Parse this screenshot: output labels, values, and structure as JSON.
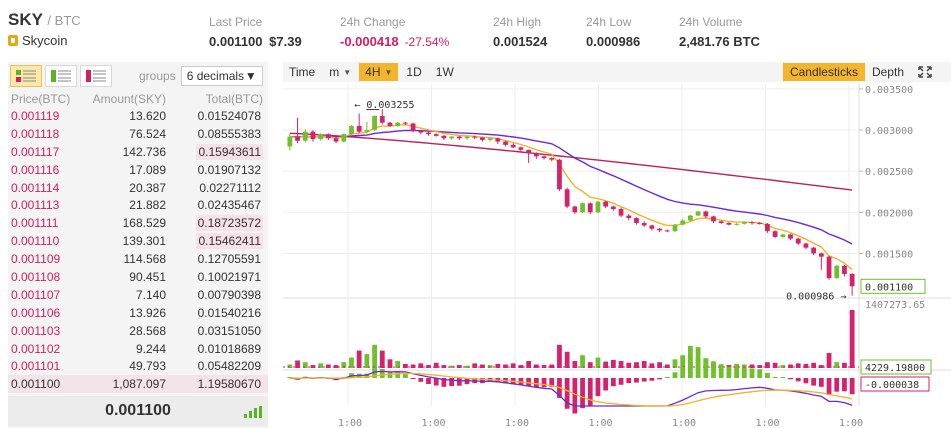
{
  "header": {
    "symbol": "SKY",
    "quote": "/ BTC",
    "name": "Skycoin",
    "last_price_label": "Last Price",
    "last_price": "0.001100",
    "last_price_usd": "$7.39",
    "change_label": "24h Change",
    "change": "-0.000418",
    "change_pct": "-27.54%",
    "high_label": "24h High",
    "high": "0.001524",
    "low_label": "24h Low",
    "low": "0.000986",
    "volume_label": "24h Volume",
    "volume": "2,481.76 BTC"
  },
  "orderbook": {
    "groups_label": "groups",
    "groups_value": "6 decimals",
    "columns": [
      "Price(BTC)",
      "Amount(SKY)",
      "Total(BTC)"
    ],
    "rows": [
      {
        "price": "0.001119",
        "amount": "13.620",
        "total": "0.01524078",
        "hl": false
      },
      {
        "price": "0.001118",
        "amount": "76.524",
        "total": "0.08555383",
        "hl": false
      },
      {
        "price": "0.001117",
        "amount": "142.736",
        "total": "0.15943611",
        "hl": true
      },
      {
        "price": "0.001116",
        "amount": "17.089",
        "total": "0.01907132",
        "hl": false
      },
      {
        "price": "0.001114",
        "amount": "20.387",
        "total": "0.02271112",
        "hl": false
      },
      {
        "price": "0.001113",
        "amount": "21.882",
        "total": "0.02435467",
        "hl": false
      },
      {
        "price": "0.001111",
        "amount": "168.529",
        "total": "0.18723572",
        "hl": true
      },
      {
        "price": "0.001110",
        "amount": "139.301",
        "total": "0.15462411",
        "hl": true
      },
      {
        "price": "0.001109",
        "amount": "114.568",
        "total": "0.12705591",
        "hl": false
      },
      {
        "price": "0.001108",
        "amount": "90.451",
        "total": "0.10021971",
        "hl": false
      },
      {
        "price": "0.001107",
        "amount": "7.140",
        "total": "0.00790398",
        "hl": false
      },
      {
        "price": "0.001106",
        "amount": "13.926",
        "total": "0.01540216",
        "hl": false
      },
      {
        "price": "0.001103",
        "amount": "28.568",
        "total": "0.03151050",
        "hl": false
      },
      {
        "price": "0.001102",
        "amount": "9.244",
        "total": "0.01018689",
        "hl": false
      },
      {
        "price": "0.001101",
        "amount": "49.793",
        "total": "0.05482209",
        "hl": false
      },
      {
        "price": "0.001100",
        "amount": "1,087.097",
        "total": "1.19580670",
        "hl": false,
        "last": true
      }
    ],
    "last_price": "0.001100"
  },
  "toolbar": {
    "time": "Time",
    "minute": "m",
    "h4": "4H",
    "d1": "1D",
    "w1": "1W",
    "candles": "Candlesticks",
    "depth": "Depth"
  },
  "chart_data": {
    "type": "candlestick",
    "price_axis": [
      "0.003500",
      "0.003000",
      "0.002500",
      "0.002000",
      "0.001500",
      "0.001100"
    ],
    "price_range": [
      0.00097,
      0.00356
    ],
    "annotations": {
      "high": "0.003255",
      "low": "0.000986"
    },
    "volume_axis": [
      "1407273.65",
      "4229.19800"
    ],
    "macd_axis": [
      "-0.000038"
    ],
    "time_labels": [
      "1:00",
      "1:00",
      "1:00",
      "1:00",
      "1:00",
      "1:00",
      "1:00"
    ],
    "candles": [
      [
        0.0028,
        0.00292,
        0.00275,
        0.00296
      ],
      [
        0.00292,
        0.00287,
        0.00284,
        0.00315
      ],
      [
        0.00287,
        0.00298,
        0.00285,
        0.00301
      ],
      [
        0.00298,
        0.00289,
        0.00286,
        0.003
      ],
      [
        0.00289,
        0.00295,
        0.00287,
        0.00296
      ],
      [
        0.00295,
        0.0029,
        0.00288,
        0.00296
      ],
      [
        0.0029,
        0.00286,
        0.00284,
        0.00291
      ],
      [
        0.00286,
        0.00295,
        0.00285,
        0.00296
      ],
      [
        0.00295,
        0.00305,
        0.00293,
        0.00306
      ],
      [
        0.00305,
        0.00298,
        0.00296,
        0.0032
      ],
      [
        0.00298,
        0.003,
        0.00296,
        0.0031
      ],
      [
        0.003,
        0.00317,
        0.00299,
        0.00318
      ],
      [
        0.00317,
        0.00309,
        0.00307,
        0.003255
      ],
      [
        0.00309,
        0.00305,
        0.00304,
        0.0031
      ],
      [
        0.00305,
        0.00309,
        0.00304,
        0.0031
      ],
      [
        0.00309,
        0.00308,
        0.00306,
        0.0031
      ],
      [
        0.00308,
        0.00299,
        0.00297,
        0.00309
      ],
      [
        0.00299,
        0.00297,
        0.00295,
        0.003
      ],
      [
        0.00297,
        0.00295,
        0.00293,
        0.00298
      ],
      [
        0.00295,
        0.00293,
        0.00292,
        0.00296
      ],
      [
        0.00293,
        0.0029,
        0.00288,
        0.00294
      ],
      [
        0.0029,
        0.00292,
        0.00288,
        0.00293
      ],
      [
        0.00292,
        0.0029,
        0.00288,
        0.00293
      ],
      [
        0.0029,
        0.00292,
        0.00288,
        0.00293
      ],
      [
        0.00292,
        0.00291,
        0.00289,
        0.00293
      ],
      [
        0.00291,
        0.00288,
        0.00286,
        0.00292
      ],
      [
        0.00288,
        0.0029,
        0.00286,
        0.00291
      ],
      [
        0.0029,
        0.00286,
        0.00283,
        0.00291
      ],
      [
        0.00286,
        0.00282,
        0.0028,
        0.00287
      ],
      [
        0.00282,
        0.00279,
        0.00278,
        0.00284
      ],
      [
        0.00279,
        0.00276,
        0.00274,
        0.0028
      ],
      [
        0.00276,
        0.00272,
        0.0026,
        0.00276
      ],
      [
        0.00272,
        0.00268,
        0.00265,
        0.00273
      ],
      [
        0.00268,
        0.00266,
        0.00264,
        0.00269
      ],
      [
        0.00266,
        0.00264,
        0.00262,
        0.00267
      ],
      [
        0.00264,
        0.00228,
        0.00226,
        0.00265
      ],
      [
        0.00228,
        0.00207,
        0.00205,
        0.0023
      ],
      [
        0.00207,
        0.002,
        0.00198,
        0.00208
      ],
      [
        0.002,
        0.00211,
        0.00199,
        0.00212
      ],
      [
        0.00211,
        0.002,
        0.00198,
        0.00212
      ],
      [
        0.002,
        0.00213,
        0.00199,
        0.00214
      ],
      [
        0.00213,
        0.00207,
        0.00205,
        0.00214
      ],
      [
        0.00207,
        0.00204,
        0.00202,
        0.00208
      ],
      [
        0.00204,
        0.00196,
        0.00194,
        0.00206
      ],
      [
        0.00196,
        0.00193,
        0.0019,
        0.00198
      ],
      [
        0.00193,
        0.00187,
        0.00185,
        0.00194
      ],
      [
        0.00187,
        0.00184,
        0.00182,
        0.00189
      ],
      [
        0.00184,
        0.0018,
        0.00178,
        0.00185
      ],
      [
        0.0018,
        0.00178,
        0.00176,
        0.00181
      ],
      [
        0.00178,
        0.00177,
        0.00176,
        0.00179
      ],
      [
        0.00177,
        0.00185,
        0.00176,
        0.00186
      ],
      [
        0.00185,
        0.0019,
        0.00184,
        0.00192
      ],
      [
        0.0019,
        0.00196,
        0.00189,
        0.00197
      ],
      [
        0.00196,
        0.00201,
        0.00195,
        0.00202
      ],
      [
        0.00201,
        0.00195,
        0.00193,
        0.00202
      ],
      [
        0.00195,
        0.00189,
        0.00187,
        0.00196
      ],
      [
        0.00189,
        0.00187,
        0.00186,
        0.0019
      ],
      [
        0.00187,
        0.00185,
        0.00184,
        0.00188
      ],
      [
        0.00185,
        0.00186,
        0.00184,
        0.00187
      ],
      [
        0.00186,
        0.00188,
        0.00185,
        0.00189
      ],
      [
        0.00188,
        0.00187,
        0.00185,
        0.00189
      ],
      [
        0.00187,
        0.00186,
        0.00185,
        0.00188
      ],
      [
        0.00186,
        0.00177,
        0.00175,
        0.00187
      ],
      [
        0.00177,
        0.0017,
        0.00169,
        0.00178
      ],
      [
        0.0017,
        0.00173,
        0.00169,
        0.00174
      ],
      [
        0.00173,
        0.00168,
        0.00166,
        0.00174
      ],
      [
        0.00168,
        0.00162,
        0.0016,
        0.00169
      ],
      [
        0.00162,
        0.00157,
        0.00155,
        0.00163
      ],
      [
        0.00157,
        0.0015,
        0.00148,
        0.00158
      ],
      [
        0.0015,
        0.00146,
        0.0013,
        0.00151
      ],
      [
        0.00146,
        0.0012,
        0.00118,
        0.00147
      ],
      [
        0.0012,
        0.00135,
        0.00119,
        0.00136
      ],
      [
        0.00135,
        0.00125,
        0.00122,
        0.00136
      ],
      [
        0.00125,
        0.0011,
        0.000986,
        0.00126
      ]
    ],
    "volumes": [
      0.06,
      0.13,
      0.1,
      0.05,
      0.08,
      0.06,
      0.05,
      0.1,
      0.18,
      0.3,
      0.24,
      0.4,
      0.3,
      0.15,
      0.12,
      0.07,
      0.06,
      0.08,
      0.05,
      0.09,
      0.05,
      0.04,
      0.05,
      0.04,
      0.08,
      0.06,
      0.05,
      0.07,
      0.06,
      0.08,
      0.05,
      0.12,
      0.06,
      0.05,
      0.06,
      0.4,
      0.28,
      0.12,
      0.22,
      0.1,
      0.18,
      0.11,
      0.14,
      0.12,
      0.09,
      0.1,
      0.12,
      0.08,
      0.1,
      0.06,
      0.15,
      0.22,
      0.38,
      0.36,
      0.16,
      0.08,
      0.06,
      0.05,
      0.07,
      0.06,
      0.06,
      0.05,
      0.1,
      0.09,
      0.05,
      0.06,
      0.08,
      0.07,
      0.09,
      0.05,
      0.26,
      0.1,
      0.09,
      1.0
    ],
    "colors": {
      "up": "#6fc02a",
      "down": "#d2236c",
      "ema_short": "#f0b32a",
      "ema_long": "#6a2bd4",
      "ma_long": "#b7235e",
      "grid": "#eeeeee"
    }
  }
}
